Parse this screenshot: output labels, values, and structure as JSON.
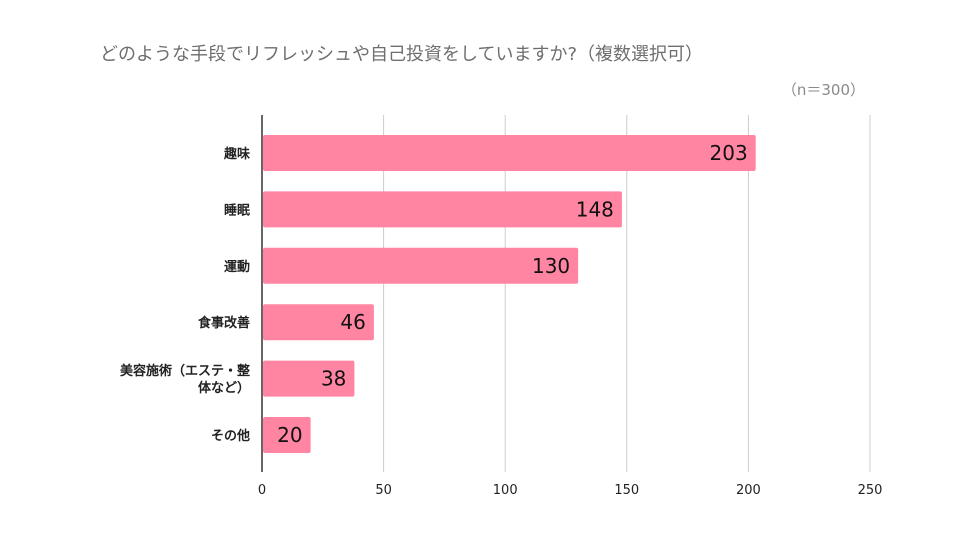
{
  "chart_data": {
    "type": "bar",
    "orientation": "horizontal",
    "title": "どのような手段でリフレッシュや自己投資をしていますか?（複数選択可）",
    "subtitle": "（n＝300）",
    "categories": [
      [
        "趣味"
      ],
      [
        "睡眠"
      ],
      [
        "運動"
      ],
      [
        "食事改善"
      ],
      [
        "美容施術（エステ・整",
        "体など）"
      ],
      [
        "その他"
      ]
    ],
    "values": [
      203,
      148,
      130,
      46,
      38,
      20
    ],
    "xlim": [
      0,
      250
    ],
    "xticks": [
      0,
      50,
      100,
      150,
      200,
      250
    ],
    "grid": true,
    "colors": {
      "bar": "#ff85a2",
      "grid": "#cccccc",
      "axis": "#333333"
    }
  }
}
